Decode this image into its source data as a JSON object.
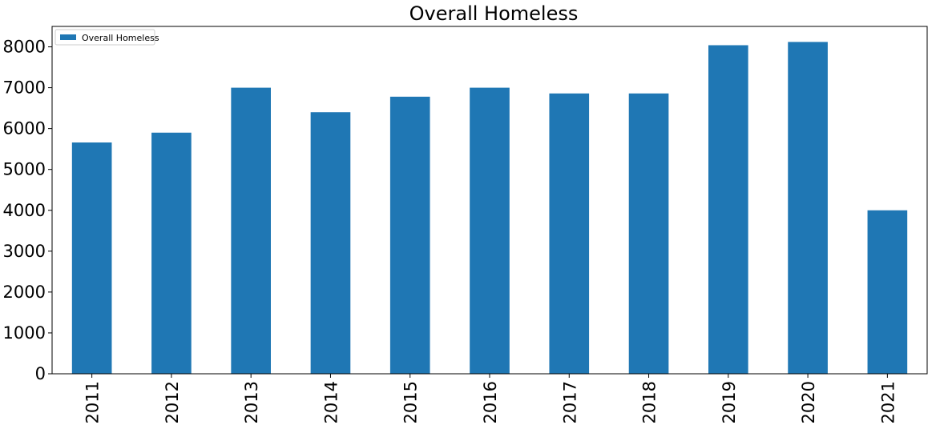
{
  "chart_data": {
    "type": "bar",
    "title": "Overall Homeless",
    "xlabel": "",
    "ylabel": "",
    "categories": [
      "2011",
      "2012",
      "2013",
      "2014",
      "2015",
      "2016",
      "2017",
      "2018",
      "2019",
      "2020",
      "2021"
    ],
    "series": [
      {
        "name": "Overall Homeless",
        "values": [
          5660,
          5900,
          7000,
          6400,
          6780,
          7000,
          6860,
          6860,
          8040,
          8120,
          4000
        ],
        "color": "#1f77b4"
      }
    ],
    "ylim": [
      0,
      8500
    ],
    "yticks": [
      0,
      1000,
      2000,
      3000,
      4000,
      5000,
      6000,
      7000,
      8000
    ],
    "grid": false,
    "legend_position": "top-left"
  }
}
